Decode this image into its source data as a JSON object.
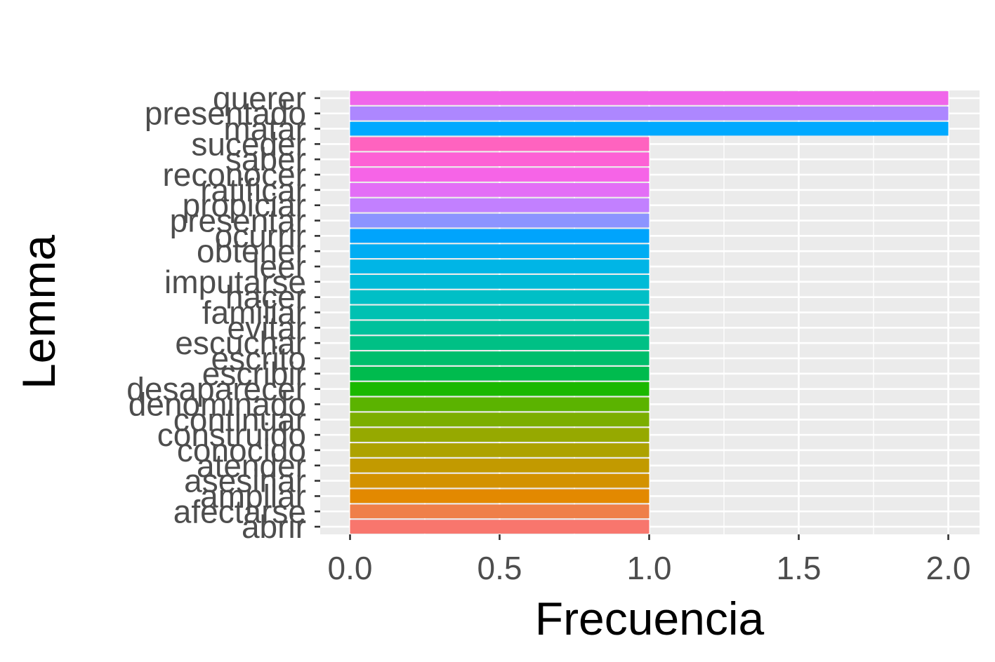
{
  "chart_data": {
    "type": "bar",
    "orientation": "horizontal",
    "xlabel": "Frecuencia",
    "ylabel": "Lemma",
    "xlim": [
      -0.1,
      2.1
    ],
    "xticks": [
      0.0,
      0.5,
      1.0,
      1.5,
      2.0
    ],
    "xtick_labels": [
      "0.0",
      "0.5",
      "1.0",
      "1.5",
      "2.0"
    ],
    "grid": true,
    "legend": "none",
    "categories": [
      "abrir",
      "afectarse",
      "ampliar",
      "asesinar",
      "atender",
      "conocido",
      "construido",
      "continuar",
      "denominado",
      "desaparecer",
      "escribir",
      "escrito",
      "escuchar",
      "evitar",
      "familiar",
      "hacer",
      "imputarse",
      "leer",
      "obtener",
      "ocurrir",
      "presentar",
      "propiciar",
      "ratificar",
      "reconocer",
      "saber",
      "suceder",
      "matar",
      "presentado",
      "querer"
    ],
    "values": [
      1,
      1,
      1,
      1,
      1,
      1,
      1,
      1,
      1,
      1,
      1,
      1,
      1,
      1,
      1,
      1,
      1,
      1,
      1,
      1,
      1,
      1,
      1,
      1,
      1,
      1,
      2,
      2,
      2
    ],
    "colors": [
      "#F8766D",
      "#EF7F49",
      "#E38900",
      "#D39200",
      "#C29A00",
      "#ADA200",
      "#96A900",
      "#7CAE00",
      "#5BB300",
      "#1BB800",
      "#00BB4E",
      "#00BE6C",
      "#00C085",
      "#00C19C",
      "#00C1B2",
      "#00BFC6",
      "#00BBD7",
      "#00B5E6",
      "#00ADF3",
      "#00A4FC",
      "#8C94FF",
      "#C280FF",
      "#E36EF6",
      "#F664E7",
      "#FD61D5",
      "#FF63BF",
      "#00A9FF",
      "#AD87FF",
      "#F066EA"
    ]
  }
}
